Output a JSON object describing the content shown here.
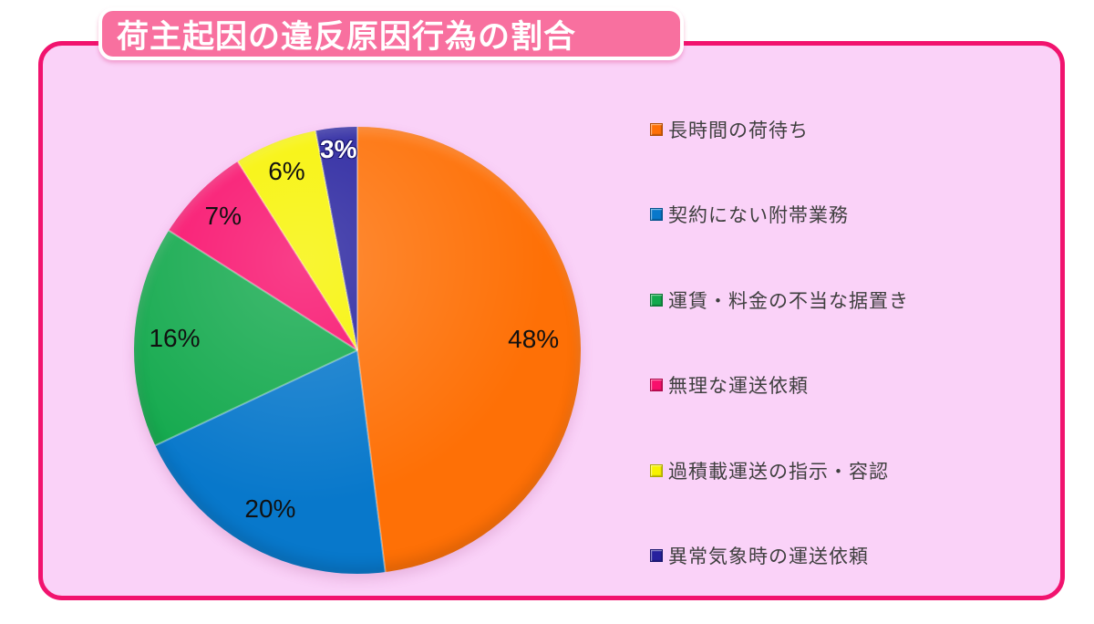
{
  "title": {
    "text": "荷主起因の違反原因行為の割合"
  },
  "colors": {
    "page_background": "#ffffff",
    "panel_fill": "#fad2f8",
    "panel_border": "#f1136e",
    "banner_fill": "#f8709f",
    "banner_text": "#ffffff"
  },
  "chart_data": {
    "type": "pie",
    "title": "荷主起因の違反原因行為の割合",
    "unit": "%",
    "direction": "clockwise",
    "start_angle_deg": 0,
    "legend_position": "right",
    "slices": [
      {
        "label": "長時間の荷待ち",
        "value": 48,
        "color": "#fe7006",
        "pct_text": "48%",
        "pct_color": "#111111"
      },
      {
        "label": "契約にない附帯業務",
        "value": 20,
        "color": "#0878cb",
        "pct_text": "20%",
        "pct_color": "#111111"
      },
      {
        "label": "運賃・料金の不当な据置き",
        "value": 16,
        "color": "#13a94d",
        "pct_text": "16%",
        "pct_color": "#111111"
      },
      {
        "label": "無理な運送依頼",
        "value": 7,
        "color": "#f80f6c",
        "pct_text": "7%",
        "pct_color": "#111111"
      },
      {
        "label": "過積載運送の指示・容認",
        "value": 6,
        "color": "#f7f300",
        "pct_text": "6%",
        "pct_color": "#111111"
      },
      {
        "label": "異常気象時の運送依頼",
        "value": 3,
        "color": "#26219e",
        "pct_text": "3%",
        "pct_color": "#ffffff",
        "pct_outline": "#1b1773"
      }
    ],
    "label_radius_frac": [
      0.79,
      0.81,
      0.82,
      0.85,
      0.86,
      0.9
    ]
  }
}
